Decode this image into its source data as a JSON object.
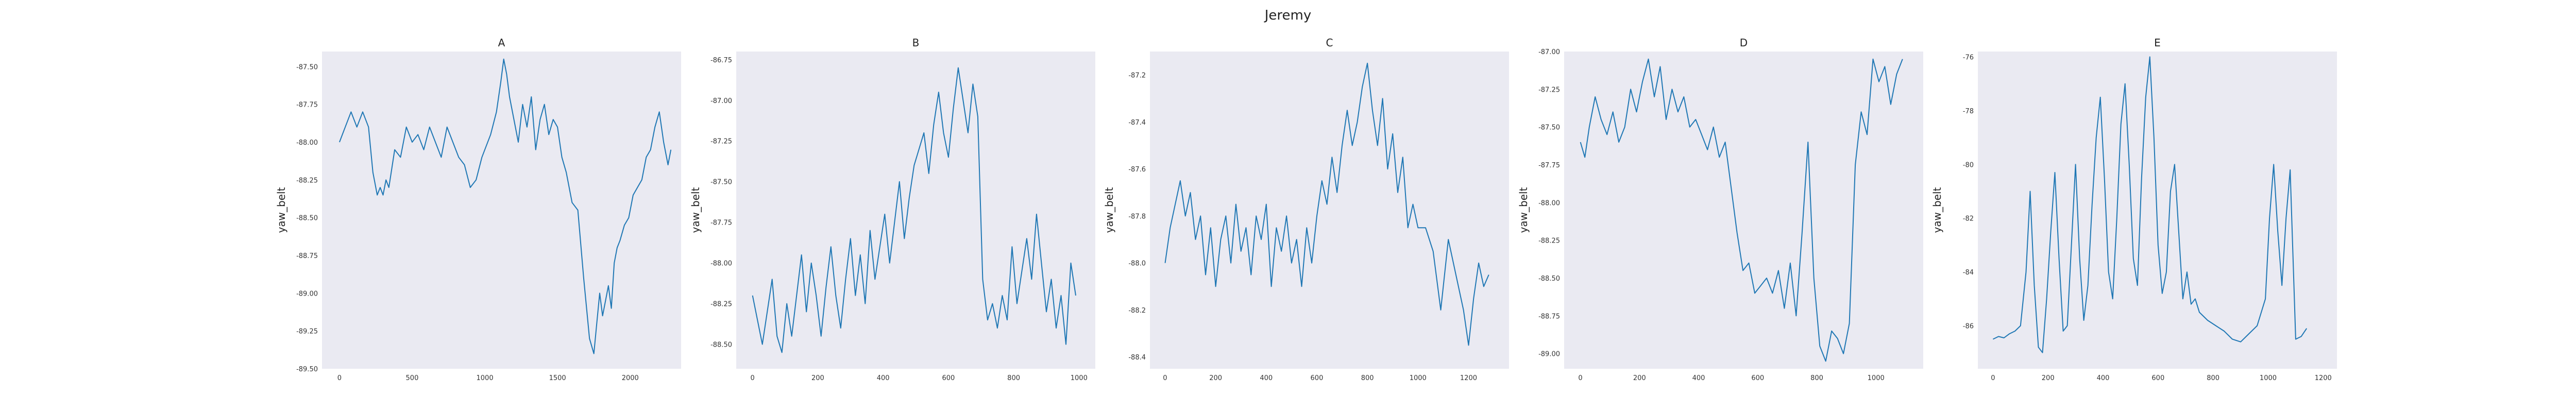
{
  "figure": {
    "title": "Jeremy"
  },
  "chart_data": [
    {
      "type": "line",
      "title": "A",
      "xlabel": "",
      "ylabel": "yaw_belt",
      "xlim": [
        -120,
        2350
      ],
      "ylim": [
        -89.5,
        -87.4
      ],
      "xticks": [
        0,
        500,
        1000,
        1500,
        2000
      ],
      "yticks": [
        -89.5,
        -89.25,
        -89.0,
        -88.75,
        -88.5,
        -88.25,
        -88.0,
        -87.75,
        -87.5
      ],
      "ytick_labels": [
        "-89.50",
        "-89.25",
        "-89.00",
        "-88.75",
        "-88.50",
        "-88.25",
        "-88.00",
        "-87.75",
        "-87.50"
      ],
      "grid": false,
      "color": "#1f77b4",
      "x": [
        0,
        40,
        80,
        120,
        160,
        200,
        230,
        260,
        280,
        300,
        320,
        340,
        380,
        420,
        460,
        500,
        540,
        580,
        620,
        660,
        700,
        740,
        780,
        820,
        860,
        900,
        940,
        980,
        1000,
        1040,
        1080,
        1110,
        1130,
        1150,
        1170,
        1200,
        1230,
        1260,
        1290,
        1320,
        1350,
        1380,
        1410,
        1440,
        1470,
        1500,
        1530,
        1560,
        1600,
        1640,
        1680,
        1720,
        1750,
        1770,
        1790,
        1810,
        1830,
        1850,
        1870,
        1890,
        1910,
        1930,
        1960,
        1990,
        2020,
        2050,
        2080,
        2110,
        2140,
        2170,
        2200,
        2230,
        2260,
        2280
      ],
      "y": [
        -88.0,
        -87.9,
        -87.8,
        -87.9,
        -87.8,
        -87.9,
        -88.2,
        -88.35,
        -88.3,
        -88.35,
        -88.25,
        -88.3,
        -88.05,
        -88.1,
        -87.9,
        -88.0,
        -87.95,
        -88.05,
        -87.9,
        -88.0,
        -88.1,
        -87.9,
        -88.0,
        -88.1,
        -88.15,
        -88.3,
        -88.25,
        -88.1,
        -88.05,
        -87.95,
        -87.8,
        -87.6,
        -87.45,
        -87.55,
        -87.7,
        -87.85,
        -88.0,
        -87.75,
        -87.9,
        -87.7,
        -88.05,
        -87.85,
        -87.75,
        -87.95,
        -87.85,
        -87.9,
        -88.1,
        -88.2,
        -88.4,
        -88.45,
        -88.9,
        -89.3,
        -89.4,
        -89.2,
        -89.0,
        -89.15,
        -89.05,
        -88.95,
        -89.1,
        -88.8,
        -88.7,
        -88.65,
        -88.55,
        -88.5,
        -88.35,
        -88.3,
        -88.25,
        -88.1,
        -88.05,
        -87.9,
        -87.8,
        -88.0,
        -88.15,
        -88.05
      ]
    },
    {
      "type": "line",
      "title": "B",
      "xlabel": "",
      "ylabel": "yaw_belt",
      "xlim": [
        -50,
        1050
      ],
      "ylim": [
        -88.65,
        -86.7
      ],
      "xticks": [
        0,
        200,
        400,
        600,
        800,
        1000
      ],
      "yticks": [
        -88.5,
        -88.25,
        -88.0,
        -87.75,
        -87.5,
        -87.25,
        -87.0,
        -86.75
      ],
      "ytick_labels": [
        "-88.50",
        "-88.25",
        "-88.00",
        "-87.75",
        "-87.50",
        "-87.25",
        "-87.00",
        "-86.75"
      ],
      "grid": false,
      "color": "#1f77b4",
      "x": [
        0,
        15,
        30,
        45,
        60,
        75,
        90,
        105,
        120,
        135,
        150,
        165,
        180,
        195,
        210,
        225,
        240,
        255,
        270,
        285,
        300,
        315,
        330,
        345,
        360,
        375,
        390,
        405,
        420,
        435,
        450,
        465,
        480,
        495,
        510,
        525,
        540,
        555,
        570,
        585,
        600,
        615,
        630,
        645,
        660,
        675,
        690,
        705,
        720,
        735,
        750,
        765,
        780,
        795,
        810,
        825,
        840,
        855,
        870,
        885,
        900,
        915,
        930,
        945,
        960,
        975,
        990
      ],
      "y": [
        -88.2,
        -88.35,
        -88.5,
        -88.3,
        -88.1,
        -88.45,
        -88.55,
        -88.25,
        -88.45,
        -88.2,
        -87.95,
        -88.3,
        -88.0,
        -88.2,
        -88.45,
        -88.15,
        -87.9,
        -88.2,
        -88.4,
        -88.1,
        -87.85,
        -88.2,
        -87.95,
        -88.25,
        -87.8,
        -88.1,
        -87.9,
        -87.7,
        -88.0,
        -87.75,
        -87.5,
        -87.85,
        -87.6,
        -87.4,
        -87.3,
        -87.2,
        -87.45,
        -87.15,
        -86.95,
        -87.2,
        -87.35,
        -87.05,
        -86.8,
        -87.0,
        -87.2,
        -86.9,
        -87.1,
        -88.1,
        -88.35,
        -88.25,
        -88.4,
        -88.2,
        -88.35,
        -87.9,
        -88.25,
        -88.05,
        -87.85,
        -88.1,
        -87.7,
        -88.0,
        -88.3,
        -88.1,
        -88.4,
        -88.2,
        -88.5,
        -88.0,
        -88.2
      ]
    },
    {
      "type": "line",
      "title": "C",
      "xlabel": "",
      "ylabel": "yaw_belt",
      "xlim": [
        -60,
        1360
      ],
      "ylim": [
        -88.45,
        -87.1
      ],
      "xticks": [
        0,
        200,
        400,
        600,
        800,
        1000,
        1200
      ],
      "yticks": [
        -88.4,
        -88.2,
        -88.0,
        -87.8,
        -87.6,
        -87.4,
        -87.2
      ],
      "ytick_labels": [
        "-88.4",
        "-88.2",
        "-88.0",
        "-87.8",
        "-87.6",
        "-87.4",
        "-87.2"
      ],
      "grid": false,
      "color": "#1f77b4",
      "x": [
        0,
        20,
        40,
        60,
        80,
        100,
        120,
        140,
        160,
        180,
        200,
        220,
        240,
        260,
        280,
        300,
        320,
        340,
        360,
        380,
        400,
        420,
        440,
        460,
        480,
        500,
        520,
        540,
        560,
        580,
        600,
        620,
        640,
        660,
        680,
        700,
        720,
        740,
        760,
        780,
        800,
        820,
        840,
        860,
        880,
        900,
        920,
        940,
        960,
        980,
        1000,
        1030,
        1060,
        1090,
        1120,
        1150,
        1180,
        1200,
        1220,
        1240,
        1260,
        1280
      ],
      "y": [
        -88.0,
        -87.85,
        -87.75,
        -87.65,
        -87.8,
        -87.7,
        -87.9,
        -87.8,
        -88.05,
        -87.85,
        -88.1,
        -87.9,
        -87.8,
        -88.0,
        -87.75,
        -87.95,
        -87.85,
        -88.05,
        -87.8,
        -87.9,
        -87.75,
        -88.1,
        -87.85,
        -87.95,
        -87.8,
        -88.0,
        -87.9,
        -88.1,
        -87.85,
        -88.0,
        -87.8,
        -87.65,
        -87.75,
        -87.55,
        -87.7,
        -87.5,
        -87.35,
        -87.5,
        -87.4,
        -87.25,
        -87.15,
        -87.35,
        -87.5,
        -87.3,
        -87.6,
        -87.45,
        -87.7,
        -87.55,
        -87.85,
        -87.75,
        -87.85,
        -87.85,
        -87.95,
        -88.2,
        -87.9,
        -88.05,
        -88.2,
        -88.35,
        -88.15,
        -88.0,
        -88.1,
        -88.05
      ]
    },
    {
      "type": "line",
      "title": "D",
      "xlabel": "",
      "ylabel": "yaw_belt",
      "xlim": [
        -55,
        1160
      ],
      "ylim": [
        -89.1,
        -87.0
      ],
      "xticks": [
        0,
        200,
        400,
        600,
        800,
        1000
      ],
      "yticks": [
        -89.0,
        -88.75,
        -88.5,
        -88.25,
        -88.0,
        -87.75,
        -87.5,
        -87.25,
        -87.0
      ],
      "ytick_labels": [
        "-89.00",
        "-88.75",
        "-88.50",
        "-88.25",
        "-88.00",
        "-87.75",
        "-87.50",
        "-87.25",
        "-87.00"
      ],
      "grid": false,
      "color": "#1f77b4",
      "x": [
        0,
        15,
        30,
        50,
        70,
        90,
        110,
        130,
        150,
        170,
        190,
        210,
        230,
        250,
        270,
        290,
        310,
        330,
        350,
        370,
        390,
        410,
        430,
        450,
        470,
        490,
        510,
        530,
        550,
        570,
        590,
        610,
        630,
        650,
        670,
        690,
        710,
        730,
        750,
        770,
        790,
        810,
        830,
        850,
        870,
        890,
        910,
        930,
        950,
        970,
        990,
        1010,
        1030,
        1050,
        1070,
        1090
      ],
      "y": [
        -87.6,
        -87.7,
        -87.5,
        -87.3,
        -87.45,
        -87.55,
        -87.4,
        -87.6,
        -87.5,
        -87.25,
        -87.4,
        -87.2,
        -87.05,
        -87.3,
        -87.1,
        -87.45,
        -87.25,
        -87.4,
        -87.3,
        -87.5,
        -87.45,
        -87.55,
        -87.65,
        -87.5,
        -87.7,
        -87.6,
        -87.9,
        -88.2,
        -88.45,
        -88.4,
        -88.6,
        -88.55,
        -88.5,
        -88.6,
        -88.45,
        -88.7,
        -88.4,
        -88.75,
        -88.2,
        -87.6,
        -88.5,
        -88.95,
        -89.05,
        -88.85,
        -88.9,
        -89.0,
        -88.8,
        -87.75,
        -87.4,
        -87.55,
        -87.05,
        -87.2,
        -87.1,
        -87.35,
        -87.15,
        -87.05
      ]
    },
    {
      "type": "line",
      "title": "E",
      "xlabel": "",
      "ylabel": "yaw_belt",
      "xlim": [
        -55,
        1250
      ],
      "ylim": [
        -87.6,
        -75.8
      ],
      "xticks": [
        0,
        200,
        400,
        600,
        800,
        1000,
        1200
      ],
      "yticks": [
        -86,
        -84,
        -82,
        -80,
        -78,
        -76
      ],
      "ytick_labels": [
        "-86",
        "-84",
        "-82",
        "-80",
        "-78",
        "-76"
      ],
      "grid": false,
      "color": "#1f77b4",
      "x": [
        0,
        20,
        40,
        60,
        80,
        100,
        120,
        135,
        150,
        165,
        180,
        195,
        210,
        225,
        240,
        255,
        270,
        285,
        300,
        315,
        330,
        345,
        360,
        375,
        390,
        405,
        420,
        435,
        450,
        465,
        480,
        495,
        510,
        525,
        540,
        555,
        570,
        585,
        600,
        615,
        630,
        645,
        660,
        675,
        690,
        705,
        720,
        735,
        750,
        780,
        810,
        840,
        870,
        900,
        930,
        960,
        990,
        1005,
        1020,
        1035,
        1050,
        1065,
        1080,
        1100,
        1120,
        1140
      ],
      "y": [
        -86.5,
        -86.4,
        -86.45,
        -86.3,
        -86.2,
        -86.0,
        -84.0,
        -81.0,
        -84.5,
        -86.8,
        -87.0,
        -85.0,
        -82.5,
        -80.3,
        -83.5,
        -86.2,
        -86.0,
        -83.0,
        -80.0,
        -83.5,
        -85.8,
        -84.5,
        -81.5,
        -79.0,
        -77.5,
        -80.5,
        -84.0,
        -85.0,
        -82.0,
        -78.5,
        -77.0,
        -80.0,
        -83.5,
        -84.5,
        -80.5,
        -77.5,
        -76.0,
        -79.0,
        -83.0,
        -84.8,
        -84.0,
        -81.0,
        -80.0,
        -82.5,
        -85.0,
        -84.0,
        -85.2,
        -85.0,
        -85.5,
        -85.8,
        -86.0,
        -86.2,
        -86.5,
        -86.6,
        -86.3,
        -86.0,
        -85.0,
        -82.0,
        -80.0,
        -82.5,
        -84.5,
        -82.0,
        -80.2,
        -86.5,
        -86.4,
        -86.1
      ]
    }
  ]
}
